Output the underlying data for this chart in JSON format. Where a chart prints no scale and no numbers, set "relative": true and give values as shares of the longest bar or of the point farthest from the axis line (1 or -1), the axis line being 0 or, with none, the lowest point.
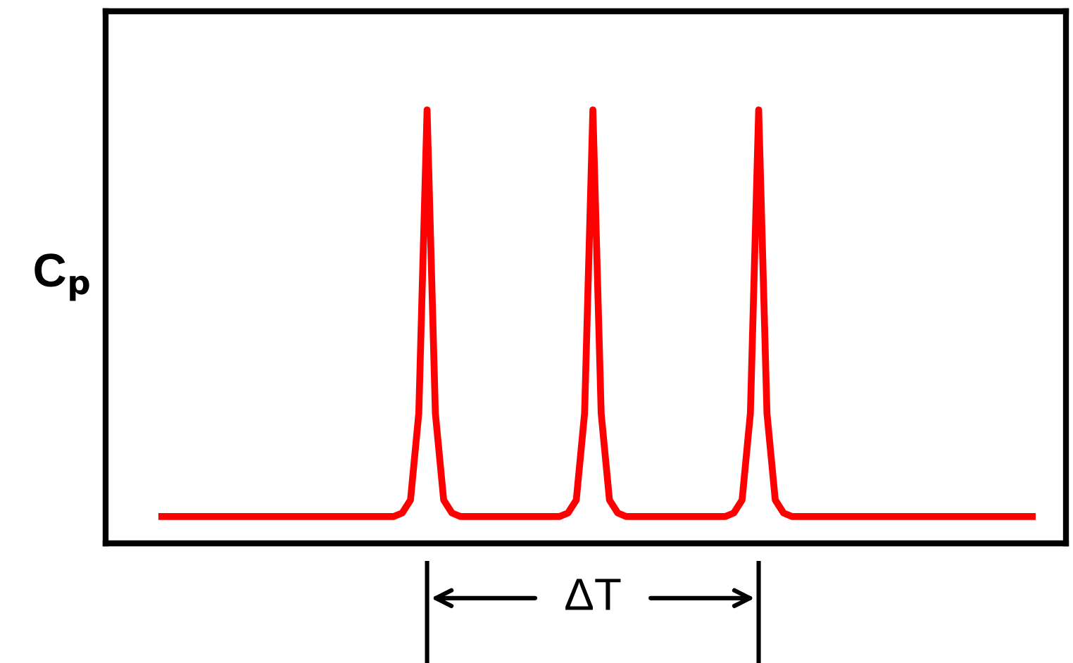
{
  "chart_data": {
    "type": "line",
    "relative": true,
    "ylabel": "C$_{p}$",
    "color": "#ff0000",
    "grid": false,
    "legend": false,
    "annotations": [
      "ΔT"
    ],
    "categories": [
      null,
      null,
      null,
      null,
      null,
      null,
      null,
      null,
      null,
      null,
      null,
      null,
      null,
      null,
      null,
      null,
      null,
      null,
      null,
      null,
      null,
      null,
      null,
      null,
      null,
      null,
      null,
      null,
      null,
      null,
      null,
      null,
      null,
      null,
      null,
      null,
      null,
      null,
      null,
      null,
      null,
      null,
      null,
      null,
      null,
      null,
      null,
      null,
      null,
      null,
      null,
      null,
      null,
      null,
      null,
      null,
      null,
      null,
      null,
      null,
      null,
      null,
      null,
      null,
      null,
      null,
      null,
      null,
      null,
      null,
      null,
      null,
      null,
      null,
      null,
      null,
      null,
      null,
      null,
      null,
      null,
      null,
      null,
      null,
      null,
      null,
      null,
      null,
      null,
      null,
      null,
      null,
      null,
      null,
      null,
      null,
      null,
      null,
      null,
      null,
      null,
      null,
      null,
      null,
      null,
      null
    ],
    "values": [
      0.062,
      0.062,
      0.062,
      0.062,
      0.062,
      0.062,
      0.062,
      0.062,
      0.062,
      0.062,
      0.062,
      0.062,
      0.062,
      0.062,
      0.062,
      0.062,
      0.062,
      0.062,
      0.062,
      0.062,
      0.062,
      0.062,
      0.062,
      0.062,
      0.062,
      0.062,
      0.062,
      0.062,
      0.062,
      0.07,
      0.1,
      0.3,
      1,
      0.3,
      0.1,
      0.07,
      0.062,
      0.062,
      0.062,
      0.062,
      0.062,
      0.062,
      0.062,
      0.062,
      0.062,
      0.062,
      0.062,
      0.062,
      0.062,
      0.07,
      0.1,
      0.3,
      1,
      0.3,
      0.1,
      0.07,
      0.062,
      0.062,
      0.062,
      0.062,
      0.062,
      0.062,
      0.062,
      0.062,
      0.062,
      0.062,
      0.062,
      0.062,
      0.062,
      0.07,
      0.1,
      0.3,
      1,
      0.3,
      0.1,
      0.07,
      0.062,
      0.062,
      0.062,
      0.062,
      0.062,
      0.062,
      0.062,
      0.062,
      0.062,
      0.062,
      0.062,
      0.062,
      0.062,
      0.062,
      0.062,
      0.062,
      0.062,
      0.062,
      0.062,
      0.062,
      0.062,
      0.062,
      0.062,
      0.062,
      0.062,
      0.062,
      0.062,
      0.062,
      0.062,
      0.062
    ]
  }
}
